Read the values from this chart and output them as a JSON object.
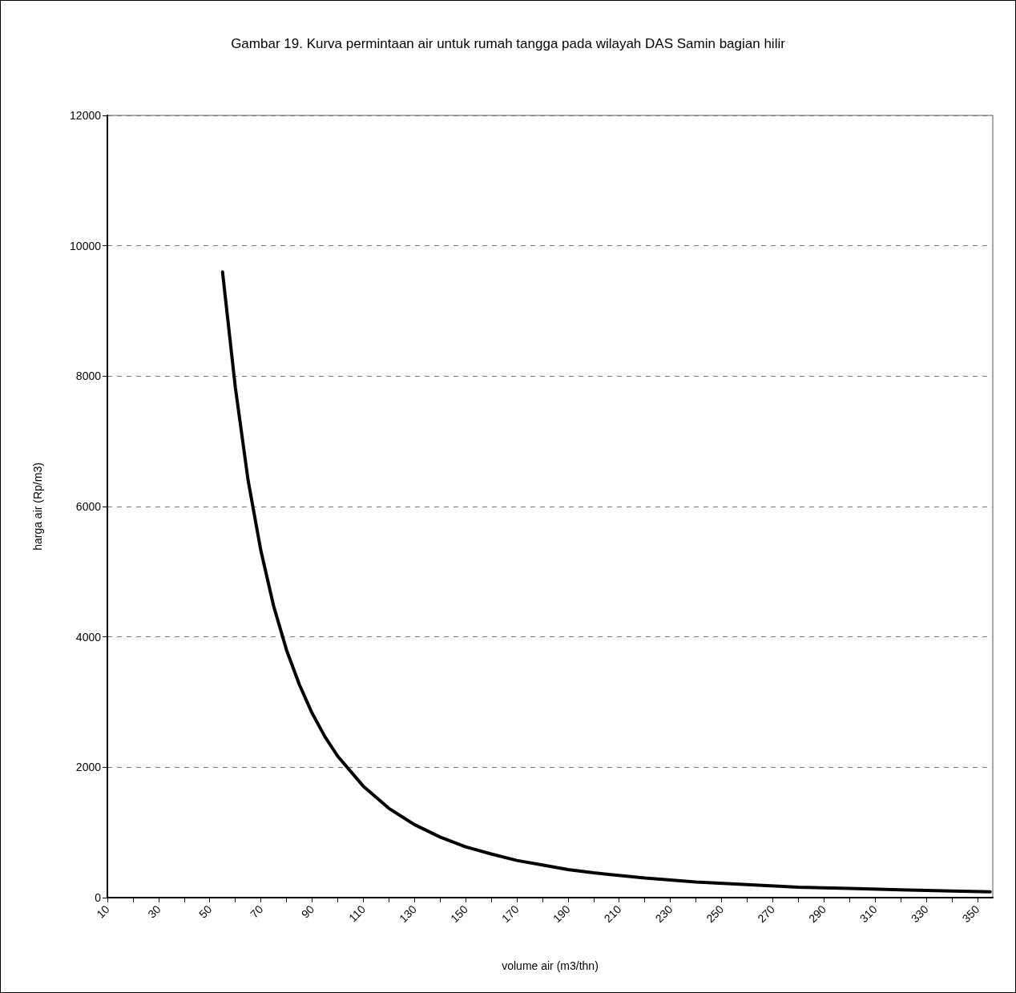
{
  "chart_data": {
    "type": "line",
    "title": "Gambar 19. Kurva permintaan air untuk rumah tangga pada wilayah DAS Samin bagian hilir",
    "xlabel": "volume air (m3/thn)",
    "ylabel": "harga air (Rp/m3)",
    "x": [
      55,
      60,
      65,
      70,
      75,
      80,
      85,
      90,
      95,
      100,
      110,
      120,
      130,
      140,
      150,
      160,
      170,
      180,
      190,
      200,
      220,
      240,
      260,
      280,
      300,
      320,
      340,
      355
    ],
    "series": [
      {
        "color": "#000000",
        "values": [
          9600,
          7830,
          6400,
          5320,
          4470,
          3800,
          3270,
          2830,
          2470,
          2170,
          1710,
          1370,
          1120,
          930,
          780,
          670,
          570,
          500,
          430,
          380,
          300,
          240,
          200,
          160,
          140,
          120,
          100,
          90
        ]
      }
    ],
    "xlim": [
      10,
      356
    ],
    "xticks": [
      10,
      {
        "value": 20,
        "label": null
      },
      30,
      {
        "value": 40,
        "label": null
      },
      50,
      {
        "value": 60,
        "label": null
      },
      70,
      {
        "value": 80,
        "label": null
      },
      90,
      {
        "value": 100,
        "label": null
      },
      110,
      {
        "value": 120,
        "label": null
      },
      130,
      {
        "value": 140,
        "label": null
      },
      150,
      {
        "value": 160,
        "label": null
      },
      170,
      {
        "value": 180,
        "label": null
      },
      190,
      {
        "value": 200,
        "label": null
      },
      210,
      {
        "value": 220,
        "label": null
      },
      230,
      {
        "value": 240,
        "label": null
      },
      250,
      {
        "value": 260,
        "label": null
      },
      270,
      {
        "value": 280,
        "label": null
      },
      290,
      {
        "value": 300,
        "label": null
      },
      310,
      {
        "value": 320,
        "label": null
      },
      330,
      {
        "value": 340,
        "label": null
      },
      350
    ],
    "ylim": [
      0,
      12000
    ],
    "yticks": [
      0,
      2000,
      4000,
      6000,
      8000,
      10000,
      12000
    ],
    "grid": "y",
    "marker": "none",
    "line_style": "solid"
  }
}
